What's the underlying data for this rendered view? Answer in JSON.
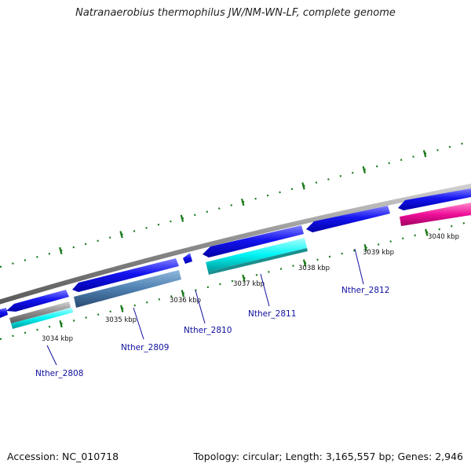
{
  "title": "Natranaerobius thermophilus JW/NM-WN-LF, complete genome",
  "footer": {
    "accession": "Accession: NC_010718",
    "topology": "Topology: circular; Length: 3,165,557 bp; Genes: 2,946"
  },
  "ticks": [
    {
      "label": "3034 kbp"
    },
    {
      "label": "3035 kbp"
    },
    {
      "label": "3036 kbp"
    },
    {
      "label": "3037 kbp"
    },
    {
      "label": "3038 kbp"
    },
    {
      "label": "3039 kbp"
    },
    {
      "label": "3040 kbp"
    }
  ],
  "genes": [
    {
      "label": "Nther_2808"
    },
    {
      "label": "Nther_2809"
    },
    {
      "label": "Nther_2810"
    },
    {
      "label": "Nther_2811"
    },
    {
      "label": "Nther_2812"
    }
  ],
  "colors": {
    "backbone": "#8c8c8c",
    "forward": "#1010e8",
    "cyan": "#00f0f0",
    "steel": "#4d7fb0",
    "magenta": "#f0109a",
    "tick": "#1a7a1a",
    "label": "#1010a0"
  }
}
